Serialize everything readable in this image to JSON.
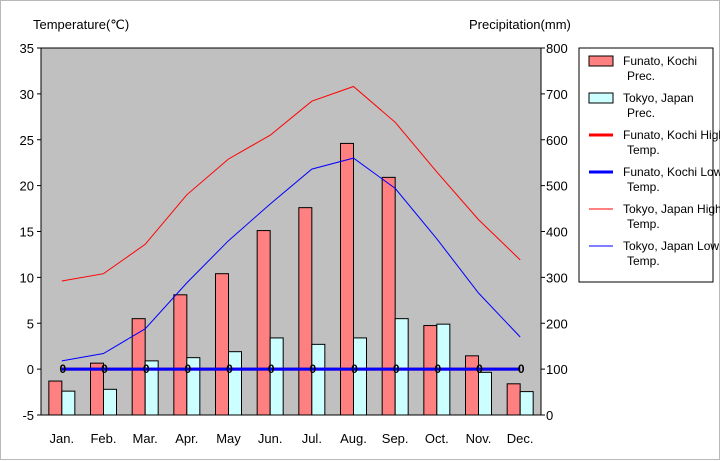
{
  "chart_data": {
    "type": "bar+line",
    "categories": [
      "Jan.",
      "Feb.",
      "Mar.",
      "Apr.",
      "May",
      "Jun.",
      "Jul.",
      "Aug.",
      "Sep.",
      "Oct.",
      "Nov.",
      "Dec."
    ],
    "left_axis": {
      "label": "Temperature(℃)",
      "min": -5,
      "max": 35,
      "step": 5
    },
    "right_axis": {
      "label": "Precipitation(mm)",
      "min": 0,
      "max": 800,
      "step": 100
    },
    "grid": false,
    "plot_background": "#c0c0c0",
    "legend_position": "right",
    "bar_series": [
      {
        "name": "Funato, Kochi Prec.",
        "color": "#ff8080",
        "values": [
          74,
          113,
          210,
          262,
          308,
          402,
          452,
          592,
          518,
          195,
          129,
          68
        ]
      },
      {
        "name": "Tokyo, Japan Prec.",
        "color": "#ccffff",
        "values": [
          52,
          56,
          118,
          125,
          138,
          168,
          154,
          168,
          210,
          198,
          93,
          51
        ]
      }
    ],
    "line_series": [
      {
        "name": "Funato, Kochi High Temp.",
        "color": "#ff0000",
        "width": 3,
        "values": [
          0,
          0,
          0,
          0,
          0,
          0,
          0,
          0,
          0,
          0,
          0,
          0
        ]
      },
      {
        "name": "Funato, Kochi Low Temp.",
        "color": "#0000ff",
        "width": 3,
        "values": [
          0,
          0,
          0,
          0,
          0,
          0,
          0,
          0,
          0,
          0,
          0,
          0
        ]
      },
      {
        "name": "Tokyo, Japan High Temp.",
        "color": "#ff0000",
        "width": 1,
        "values": [
          9.6,
          10.4,
          13.6,
          19.0,
          22.9,
          25.5,
          29.2,
          30.8,
          26.9,
          21.5,
          16.3,
          11.9
        ]
      },
      {
        "name": "Tokyo, Japan Low Temp.",
        "color": "#0000ff",
        "width": 1,
        "values": [
          0.9,
          1.7,
          4.4,
          9.4,
          14.0,
          18.0,
          21.8,
          23.0,
          19.7,
          14.2,
          8.3,
          3.5
        ]
      }
    ],
    "zero_markers": [
      "0",
      "0",
      "0",
      "0",
      "0",
      "0",
      "0",
      "0",
      "0",
      "0",
      "0",
      "0"
    ]
  }
}
